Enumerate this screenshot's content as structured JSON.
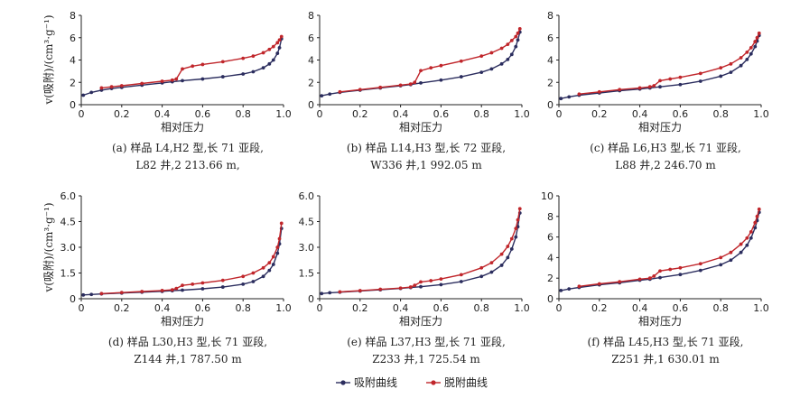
{
  "figure": {
    "ylabel": "v(吸附)/(cm³·g⁻¹)",
    "legend": [
      {
        "name": "吸附曲线",
        "color": "#2b2d5e"
      },
      {
        "name": "脱附曲线",
        "color": "#c0262b"
      }
    ]
  },
  "chart_data": [
    {
      "type": "line",
      "id": "a",
      "xlabel": "相对压力",
      "caption": [
        "(a) 样品 L4,H2 型,长 71 亚段,",
        "L82 井,2 213.66 m,"
      ],
      "xlim": [
        0,
        1
      ],
      "ylim": [
        0,
        8
      ],
      "xticks": [
        "0",
        "0.2",
        "0.4",
        "0.6",
        "0.8",
        "1.0"
      ],
      "yticks": [
        "0",
        "2",
        "4",
        "6",
        "8"
      ],
      "series": [
        {
          "name": "吸附曲线",
          "x": [
            0.01,
            0.05,
            0.1,
            0.15,
            0.2,
            0.3,
            0.4,
            0.45,
            0.5,
            0.6,
            0.7,
            0.8,
            0.85,
            0.9,
            0.93,
            0.95,
            0.97,
            0.98,
            0.99
          ],
          "y": [
            0.85,
            1.1,
            1.3,
            1.45,
            1.55,
            1.75,
            1.95,
            2.05,
            2.15,
            2.3,
            2.5,
            2.75,
            2.95,
            3.3,
            3.65,
            4.0,
            4.6,
            5.1,
            5.9
          ]
        },
        {
          "name": "脱附曲线",
          "x": [
            0.1,
            0.15,
            0.2,
            0.3,
            0.4,
            0.45,
            0.47,
            0.5,
            0.55,
            0.6,
            0.7,
            0.8,
            0.85,
            0.9,
            0.93,
            0.95,
            0.97,
            0.98,
            0.99
          ],
          "y": [
            1.5,
            1.6,
            1.7,
            1.9,
            2.1,
            2.2,
            2.3,
            3.2,
            3.45,
            3.6,
            3.85,
            4.15,
            4.35,
            4.65,
            4.95,
            5.2,
            5.55,
            5.8,
            6.1
          ]
        }
      ]
    },
    {
      "type": "line",
      "id": "b",
      "xlabel": "相对压力",
      "caption": [
        "(b) 样品 L14,H3 型,长 72 亚段,",
        "W336 井,1 992.05 m"
      ],
      "xlim": [
        0,
        1
      ],
      "ylim": [
        0,
        8
      ],
      "xticks": [
        "0",
        "0.2",
        "0.4",
        "0.6",
        "0.8",
        "1.0"
      ],
      "yticks": [
        "0",
        "2",
        "4",
        "6",
        "8"
      ],
      "series": [
        {
          "name": "吸附曲线",
          "x": [
            0.01,
            0.05,
            0.1,
            0.2,
            0.3,
            0.4,
            0.45,
            0.5,
            0.6,
            0.7,
            0.8,
            0.85,
            0.9,
            0.93,
            0.95,
            0.97,
            0.98,
            0.99
          ],
          "y": [
            0.8,
            0.95,
            1.1,
            1.3,
            1.5,
            1.7,
            1.8,
            1.95,
            2.2,
            2.5,
            2.9,
            3.2,
            3.65,
            4.05,
            4.5,
            5.2,
            5.8,
            6.5
          ]
        },
        {
          "name": "脱附曲线",
          "x": [
            0.1,
            0.2,
            0.3,
            0.4,
            0.45,
            0.47,
            0.5,
            0.55,
            0.6,
            0.7,
            0.8,
            0.85,
            0.9,
            0.93,
            0.95,
            0.97,
            0.98,
            0.99
          ],
          "y": [
            1.15,
            1.35,
            1.55,
            1.75,
            1.85,
            2.0,
            3.05,
            3.3,
            3.5,
            3.9,
            4.35,
            4.65,
            5.05,
            5.4,
            5.75,
            6.1,
            6.4,
            6.8
          ]
        }
      ]
    },
    {
      "type": "line",
      "id": "c",
      "xlabel": "相对压力",
      "caption": [
        "(c) 样品 L6,H3 型,长 71 亚段,",
        "L88 井,2 246.70 m"
      ],
      "xlim": [
        0,
        1
      ],
      "ylim": [
        0,
        8
      ],
      "xticks": [
        "0",
        "0.2",
        "0.4",
        "0.6",
        "0.8",
        "1.0"
      ],
      "yticks": [
        "0",
        "2",
        "4",
        "6",
        "8"
      ],
      "series": [
        {
          "name": "吸附曲线",
          "x": [
            0.01,
            0.05,
            0.1,
            0.2,
            0.3,
            0.4,
            0.45,
            0.5,
            0.6,
            0.7,
            0.8,
            0.85,
            0.9,
            0.93,
            0.95,
            0.97,
            0.98,
            0.99
          ],
          "y": [
            0.55,
            0.7,
            0.85,
            1.05,
            1.25,
            1.4,
            1.5,
            1.6,
            1.8,
            2.1,
            2.55,
            2.9,
            3.5,
            4.05,
            4.55,
            5.2,
            5.7,
            6.2
          ]
        },
        {
          "name": "脱附曲线",
          "x": [
            0.1,
            0.2,
            0.3,
            0.4,
            0.45,
            0.47,
            0.5,
            0.55,
            0.6,
            0.7,
            0.8,
            0.85,
            0.9,
            0.93,
            0.95,
            0.97,
            0.98,
            0.99
          ],
          "y": [
            0.95,
            1.15,
            1.35,
            1.5,
            1.6,
            1.7,
            2.15,
            2.3,
            2.45,
            2.8,
            3.3,
            3.65,
            4.2,
            4.7,
            5.1,
            5.65,
            6.0,
            6.4
          ]
        }
      ]
    },
    {
      "type": "line",
      "id": "d",
      "xlabel": "相对压力",
      "caption": [
        "(d) 样品 L30,H3 型,长 71 亚段,",
        "Z144 井,1 787.50 m"
      ],
      "xlim": [
        0,
        1
      ],
      "ylim": [
        0,
        6
      ],
      "xticks": [
        "0",
        "0.2",
        "0.4",
        "0.6",
        "0.8",
        "1.0"
      ],
      "yticks": [
        "0",
        "1.5",
        "3.0",
        "4.5",
        "6.0"
      ],
      "series": [
        {
          "name": "吸附曲线",
          "x": [
            0.01,
            0.05,
            0.1,
            0.2,
            0.3,
            0.4,
            0.45,
            0.5,
            0.6,
            0.7,
            0.8,
            0.85,
            0.9,
            0.93,
            0.95,
            0.97,
            0.98,
            0.99
          ],
          "y": [
            0.22,
            0.25,
            0.28,
            0.33,
            0.38,
            0.43,
            0.47,
            0.5,
            0.58,
            0.68,
            0.85,
            1.0,
            1.3,
            1.65,
            2.0,
            2.65,
            3.2,
            4.1
          ]
        },
        {
          "name": "脱附曲线",
          "x": [
            0.1,
            0.2,
            0.3,
            0.4,
            0.45,
            0.47,
            0.5,
            0.55,
            0.6,
            0.7,
            0.8,
            0.85,
            0.9,
            0.93,
            0.95,
            0.97,
            0.98,
            0.99
          ],
          "y": [
            0.3,
            0.36,
            0.42,
            0.48,
            0.52,
            0.6,
            0.78,
            0.85,
            0.92,
            1.07,
            1.3,
            1.5,
            1.8,
            2.1,
            2.45,
            3.0,
            3.5,
            4.4
          ]
        }
      ]
    },
    {
      "type": "line",
      "id": "e",
      "xlabel": "相对压力",
      "caption": [
        "(e) 样品 L37,H3 型,长 71 亚段,",
        "Z233 井,1 725.54 m"
      ],
      "xlim": [
        0,
        1
      ],
      "ylim": [
        0,
        6
      ],
      "xticks": [
        "0",
        "0.2",
        "0.4",
        "0.6",
        "0.8",
        "1.0"
      ],
      "yticks": [
        "0",
        "1.5",
        "3.0",
        "4.5",
        "6.0"
      ],
      "series": [
        {
          "name": "吸附曲线",
          "x": [
            0.01,
            0.05,
            0.1,
            0.2,
            0.3,
            0.4,
            0.45,
            0.5,
            0.6,
            0.7,
            0.8,
            0.85,
            0.9,
            0.93,
            0.95,
            0.97,
            0.98,
            0.99
          ],
          "y": [
            0.3,
            0.35,
            0.38,
            0.45,
            0.52,
            0.6,
            0.65,
            0.7,
            0.82,
            1.0,
            1.3,
            1.55,
            1.95,
            2.4,
            2.9,
            3.6,
            4.2,
            5.0
          ]
        },
        {
          "name": "脱附曲线",
          "x": [
            0.1,
            0.2,
            0.3,
            0.4,
            0.45,
            0.47,
            0.5,
            0.55,
            0.6,
            0.7,
            0.8,
            0.85,
            0.9,
            0.93,
            0.95,
            0.97,
            0.98,
            0.99
          ],
          "y": [
            0.4,
            0.47,
            0.55,
            0.62,
            0.68,
            0.78,
            0.98,
            1.05,
            1.15,
            1.4,
            1.8,
            2.1,
            2.6,
            3.05,
            3.5,
            4.1,
            4.6,
            5.25
          ]
        }
      ]
    },
    {
      "type": "line",
      "id": "f",
      "xlabel": "相对压力",
      "caption": [
        "(f) 样品 L45,H3 型,长 71 亚段,",
        "Z251 井,1 630.01 m"
      ],
      "xlim": [
        0,
        1
      ],
      "ylim": [
        0,
        10
      ],
      "xticks": [
        "0",
        "0.2",
        "0.4",
        "0.6",
        "0.8",
        "1.0"
      ],
      "yticks": [
        "0",
        "2",
        "4",
        "6",
        "8",
        "10"
      ],
      "series": [
        {
          "name": "吸附曲线",
          "x": [
            0.01,
            0.05,
            0.1,
            0.2,
            0.3,
            0.4,
            0.45,
            0.5,
            0.6,
            0.7,
            0.8,
            0.85,
            0.9,
            0.93,
            0.95,
            0.97,
            0.98,
            0.99
          ],
          "y": [
            0.8,
            0.95,
            1.1,
            1.35,
            1.55,
            1.8,
            1.9,
            2.05,
            2.35,
            2.75,
            3.3,
            3.75,
            4.5,
            5.2,
            5.9,
            6.9,
            7.6,
            8.4
          ]
        },
        {
          "name": "脱附曲线",
          "x": [
            0.1,
            0.2,
            0.3,
            0.4,
            0.45,
            0.47,
            0.5,
            0.55,
            0.6,
            0.7,
            0.8,
            0.85,
            0.9,
            0.93,
            0.95,
            0.97,
            0.98,
            0.99
          ],
          "y": [
            1.2,
            1.45,
            1.65,
            1.9,
            2.0,
            2.2,
            2.7,
            2.85,
            3.0,
            3.4,
            4.0,
            4.5,
            5.3,
            5.9,
            6.5,
            7.4,
            8.0,
            8.7
          ]
        }
      ]
    }
  ]
}
